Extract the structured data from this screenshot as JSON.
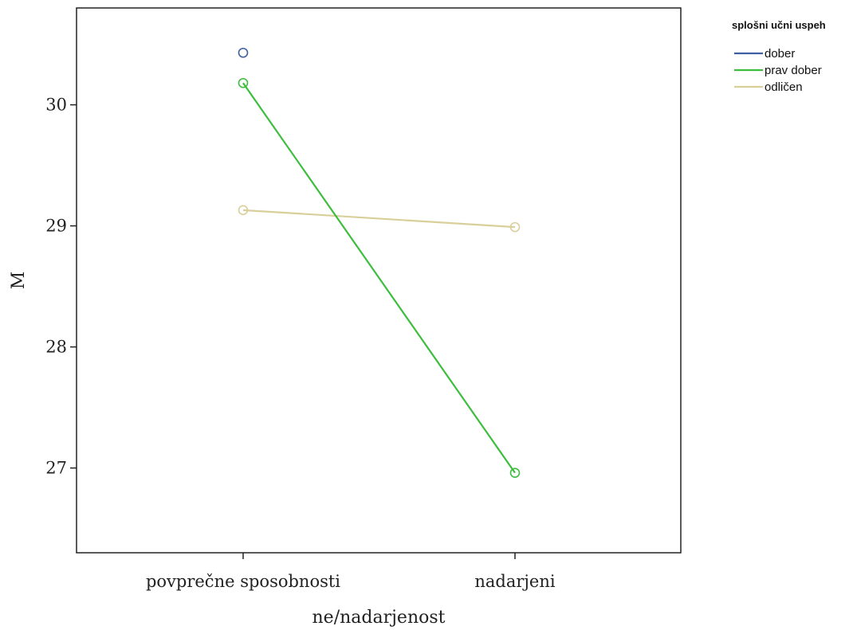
{
  "chart_data": {
    "type": "line",
    "xlabel": "ne/nadarjenost",
    "ylabel": "M",
    "categories": [
      "povprečne sposobnosti",
      "nadarjeni"
    ],
    "ylim": [
      26.3,
      30.8
    ],
    "yticks": [
      27,
      28,
      29,
      30
    ],
    "grid": false,
    "legend": {
      "title": "splošni učni uspeh",
      "placement": "right-top"
    },
    "series": [
      {
        "name": "dober",
        "color": "#3f5fa3",
        "values": [
          30.43,
          null
        ]
      },
      {
        "name": "prav dober",
        "color": "#3ebd3e",
        "values": [
          30.18,
          26.96
        ]
      },
      {
        "name": "odličen",
        "color": "#d9cf9a",
        "values": [
          29.13,
          28.99
        ]
      }
    ]
  }
}
